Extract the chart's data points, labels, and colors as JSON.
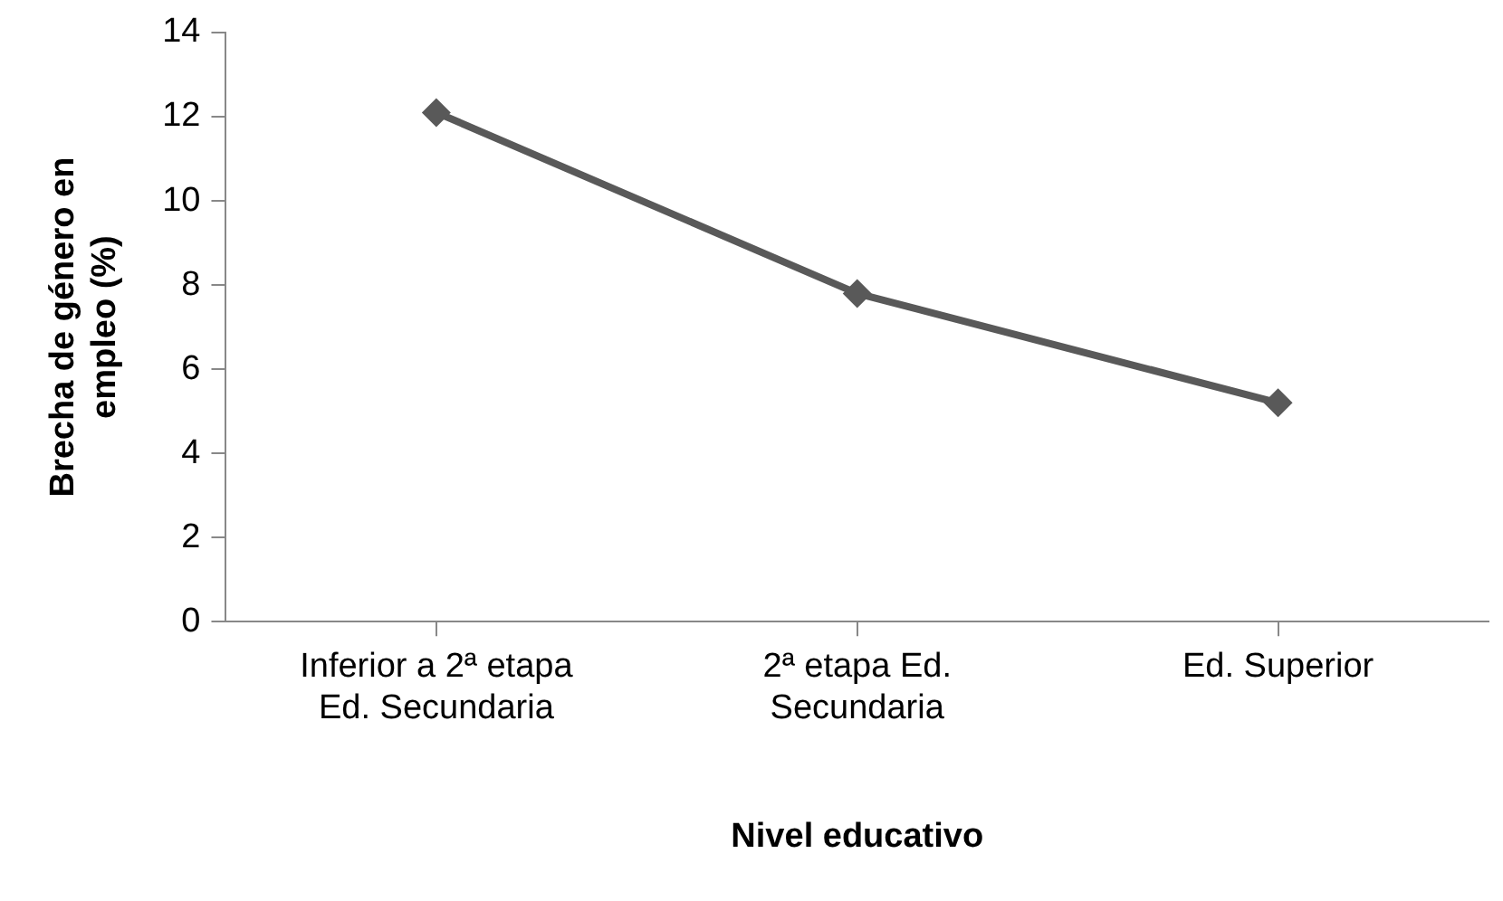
{
  "chart_data": {
    "type": "line",
    "xlabel": "Nivel educativo",
    "ylabel": "Brecha de género en empleo (%)",
    "categories": [
      "Inferior a 2ª etapa Ed. Secundaria",
      "2ª etapa Ed. Secundaria",
      "Ed. Superior"
    ],
    "series": [
      {
        "color": "#595959",
        "values": [
          12.1,
          7.8,
          5.2
        ]
      }
    ],
    "ylim": [
      0,
      14
    ],
    "yticks": [
      0,
      2,
      4,
      6,
      8,
      10,
      12,
      14
    ],
    "grid": false,
    "legend": false,
    "marker": "diamond",
    "line_style": "solid"
  }
}
